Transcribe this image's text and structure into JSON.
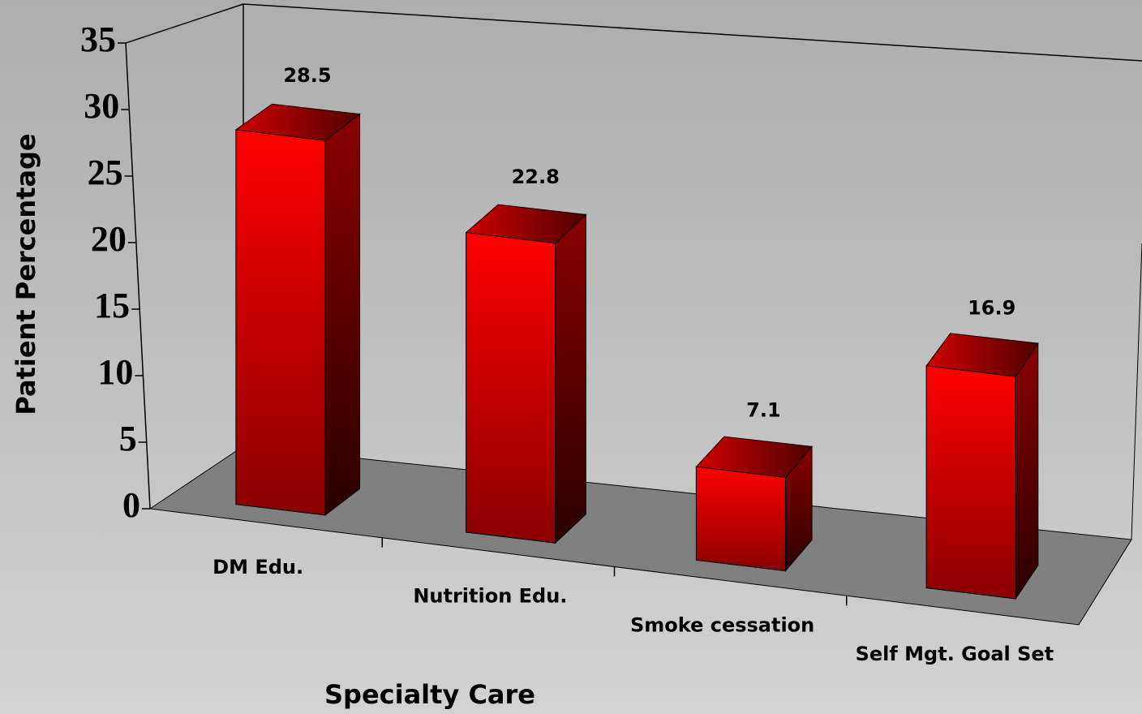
{
  "chart_data": {
    "type": "bar3d",
    "categories": [
      "DM Edu.",
      "Nutrition Edu.",
      "Smoke cessation",
      "Self Mgt. Goal Set"
    ],
    "values": [
      28.5,
      22.8,
      7.1,
      16.9
    ],
    "color": "#ff0000",
    "ylim": [
      0,
      35
    ],
    "yticks": [
      0,
      5,
      10,
      15,
      20,
      25,
      30,
      35
    ],
    "xlabel": "Specialty Care",
    "ylabel": "Patient Percentage",
    "grid": false
  }
}
